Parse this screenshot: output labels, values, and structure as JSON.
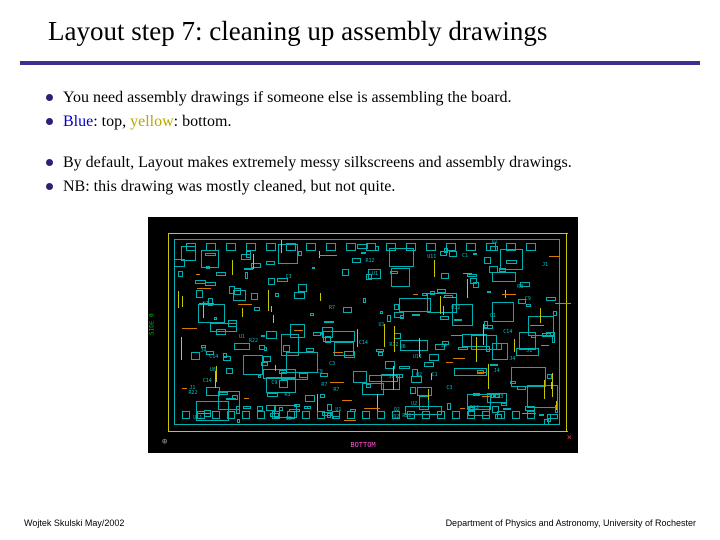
{
  "title": "Layout step 7: cleaning up assembly drawings",
  "bullets": {
    "group1": [
      {
        "text": "You need assembly drawings if someone else is assembling the board."
      },
      {
        "prefix": "",
        "blue": "Blue",
        "mid": ": top, ",
        "yellow": "yellow",
        "suffix": ": bottom."
      }
    ],
    "group2": [
      {
        "text": "By default, Layout makes extremely messy silkscreens and assembly drawings."
      },
      {
        "text": "NB: this drawing was mostly cleaned, but not quite."
      }
    ]
  },
  "pcb": {
    "bottom_label": "BOTTOM",
    "side_label": "SIDE 0",
    "colors": {
      "bg": "#000000",
      "cyan": "#00b0b0",
      "yellow": "#c8c800",
      "orange": "#d87a00",
      "pink": "#ff4fd0",
      "green": "#00c000"
    }
  },
  "footer": {
    "left": "Wojtek Skulski May/2002",
    "right": "Department of Physics and Astronomy, University of Rochester"
  }
}
